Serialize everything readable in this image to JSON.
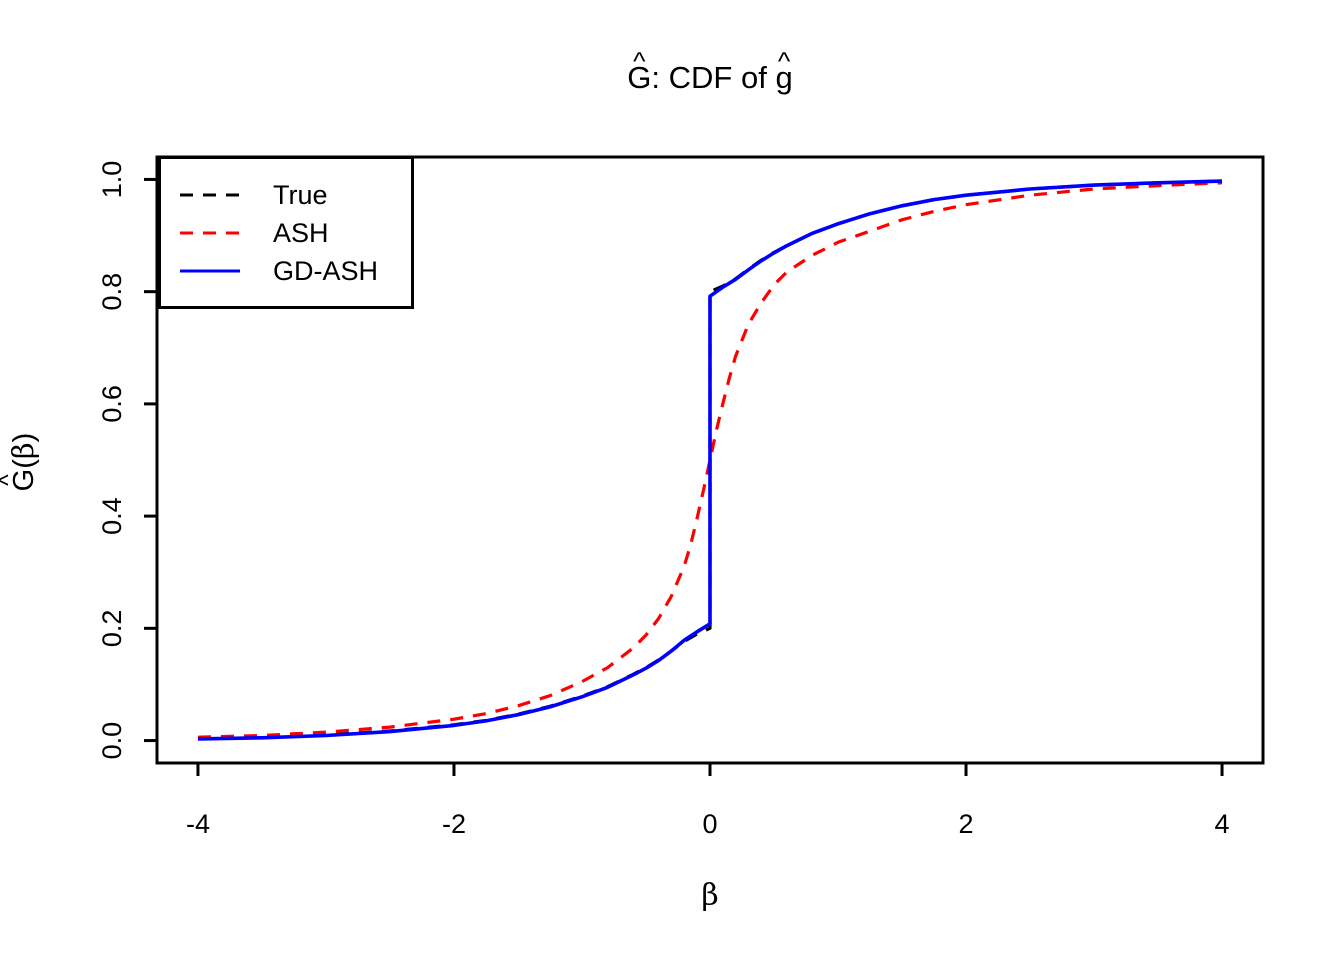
{
  "page": {
    "background": "#FFFFFF"
  },
  "title": {
    "part1_hat": "^",
    "part1_letter": "G",
    "part2": ": CDF of ",
    "part3_hat": "^",
    "part3_letter": "g"
  },
  "axes": {
    "x_label": "β",
    "y_label": {
      "hat": "^",
      "letter": "G",
      "open_paren": "(",
      "beta": "β",
      "close_paren": ")"
    }
  },
  "legend": {
    "items": [
      {
        "label": "True",
        "color": "#000000",
        "line_style": "dashed"
      },
      {
        "label": "ASH",
        "color": "#FF0000",
        "line_style": "dashed"
      },
      {
        "label": "GD-ASH",
        "color": "#0000FF",
        "line_style": "solid"
      }
    ]
  },
  "chart_data": {
    "type": "line",
    "title": "Ĝ: CDF of ĝ",
    "xlabel": "β",
    "ylabel": "Ĝ(β)",
    "xlim": [
      -4,
      4
    ],
    "ylim": [
      0,
      1
    ],
    "grid": false,
    "legend_position": "topleft",
    "x_ticks": [
      {
        "value": -4,
        "label": "-4"
      },
      {
        "value": -2,
        "label": "-2"
      },
      {
        "value": 0,
        "label": "0"
      },
      {
        "value": 2,
        "label": "2"
      },
      {
        "value": 4,
        "label": "4"
      }
    ],
    "y_ticks": [
      {
        "value": 0.0,
        "label": "0.0"
      },
      {
        "value": 0.2,
        "label": "0.2"
      },
      {
        "value": 0.4,
        "label": "0.4"
      },
      {
        "value": 0.6,
        "label": "0.6"
      },
      {
        "value": 0.8,
        "label": "0.8"
      },
      {
        "value": 1.0,
        "label": "1.0"
      }
    ],
    "description": "CDF curves over β in [-4,4]. True and GD-ASH coincide closely and have a jump discontinuity at β=0 (from ≈0.20 to ≈0.80, point mass ≈0.6 at zero). ASH is a smooth sigmoid passing through 0.5 at β=0.",
    "series": [
      {
        "name": "True",
        "color": "#000000",
        "style": "dashed",
        "width": 3.2,
        "points": [
          [
            -4,
            0.004
          ],
          [
            -3.5,
            0.006
          ],
          [
            -3,
            0.01
          ],
          [
            -2.5,
            0.017
          ],
          [
            -2,
            0.028
          ],
          [
            -1.75,
            0.036
          ],
          [
            -1.5,
            0.047
          ],
          [
            -1.25,
            0.061
          ],
          [
            -1,
            0.079
          ],
          [
            -0.8,
            0.096
          ],
          [
            -0.6,
            0.118
          ],
          [
            -0.5,
            0.13
          ],
          [
            -0.4,
            0.144
          ],
          [
            -0.3,
            0.16
          ],
          [
            -0.2,
            0.177
          ],
          [
            -0.1,
            0.19
          ],
          [
            0,
            0.2
          ],
          [
            0,
            0.8
          ],
          [
            0.1,
            0.81
          ],
          [
            0.2,
            0.823
          ],
          [
            0.3,
            0.84
          ],
          [
            0.4,
            0.856
          ],
          [
            0.5,
            0.87
          ],
          [
            0.6,
            0.882
          ],
          [
            0.8,
            0.904
          ],
          [
            1,
            0.921
          ],
          [
            1.25,
            0.939
          ],
          [
            1.5,
            0.953
          ],
          [
            1.75,
            0.964
          ],
          [
            2,
            0.972
          ],
          [
            2.5,
            0.983
          ],
          [
            3,
            0.99
          ],
          [
            3.5,
            0.994
          ],
          [
            4,
            0.997
          ]
        ]
      },
      {
        "name": "ASH",
        "color": "#FF0000",
        "style": "dashed",
        "width": 3.2,
        "points": [
          [
            -4,
            0.006
          ],
          [
            -3.5,
            0.009
          ],
          [
            -3,
            0.015
          ],
          [
            -2.5,
            0.024
          ],
          [
            -2,
            0.038
          ],
          [
            -1.75,
            0.048
          ],
          [
            -1.5,
            0.062
          ],
          [
            -1.25,
            0.08
          ],
          [
            -1,
            0.105
          ],
          [
            -0.8,
            0.13
          ],
          [
            -0.6,
            0.165
          ],
          [
            -0.5,
            0.188
          ],
          [
            -0.4,
            0.218
          ],
          [
            -0.3,
            0.258
          ],
          [
            -0.2,
            0.312
          ],
          [
            -0.15,
            0.35
          ],
          [
            -0.1,
            0.397
          ],
          [
            -0.05,
            0.447
          ],
          [
            0,
            0.5
          ],
          [
            0.05,
            0.553
          ],
          [
            0.1,
            0.6
          ],
          [
            0.15,
            0.645
          ],
          [
            0.2,
            0.685
          ],
          [
            0.3,
            0.742
          ],
          [
            0.4,
            0.78
          ],
          [
            0.5,
            0.812
          ],
          [
            0.6,
            0.835
          ],
          [
            0.8,
            0.865
          ],
          [
            1,
            0.888
          ],
          [
            1.25,
            0.908
          ],
          [
            1.5,
            0.928
          ],
          [
            1.75,
            0.943
          ],
          [
            2,
            0.955
          ],
          [
            2.5,
            0.972
          ],
          [
            3,
            0.983
          ],
          [
            3.5,
            0.989
          ],
          [
            4,
            0.994
          ]
        ]
      },
      {
        "name": "GD-ASH",
        "color": "#0000FF",
        "style": "solid",
        "width": 3.6,
        "points": [
          [
            -4,
            0.003
          ],
          [
            -3.5,
            0.005
          ],
          [
            -3,
            0.009
          ],
          [
            -2.5,
            0.016
          ],
          [
            -2,
            0.027
          ],
          [
            -1.75,
            0.035
          ],
          [
            -1.5,
            0.046
          ],
          [
            -1.25,
            0.06
          ],
          [
            -1,
            0.078
          ],
          [
            -0.8,
            0.095
          ],
          [
            -0.6,
            0.117
          ],
          [
            -0.5,
            0.129
          ],
          [
            -0.4,
            0.143
          ],
          [
            -0.3,
            0.16
          ],
          [
            -0.2,
            0.179
          ],
          [
            -0.1,
            0.194
          ],
          [
            0,
            0.208
          ],
          [
            0,
            0.792
          ],
          [
            0.1,
            0.808
          ],
          [
            0.2,
            0.822
          ],
          [
            0.3,
            0.839
          ],
          [
            0.4,
            0.855
          ],
          [
            0.5,
            0.869
          ],
          [
            0.6,
            0.882
          ],
          [
            0.8,
            0.904
          ],
          [
            1,
            0.921
          ],
          [
            1.25,
            0.939
          ],
          [
            1.5,
            0.953
          ],
          [
            1.75,
            0.964
          ],
          [
            2,
            0.972
          ],
          [
            2.5,
            0.983
          ],
          [
            3,
            0.99
          ],
          [
            3.5,
            0.994
          ],
          [
            4,
            0.997
          ]
        ]
      }
    ]
  }
}
